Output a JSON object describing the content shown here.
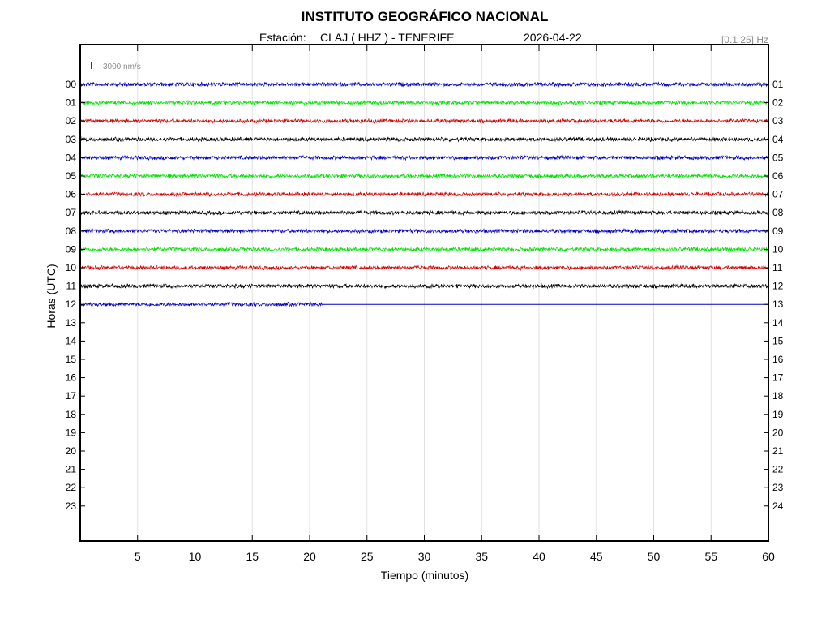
{
  "header": {
    "title": "INSTITUTO GEOGRÁFICO NACIONAL",
    "station_prefix": "Estación:",
    "station": "CLAJ ( HHZ ) - TENERIFE",
    "date": "2026-04-22",
    "filter": "[0.1 25] Hz"
  },
  "chart_data": {
    "type": "line",
    "title": "INSTITUTO GEOGRÁFICO NACIONAL",
    "xlabel": "Tiempo (minutos)",
    "ylabel": "Horas (UTC)",
    "xlim": [
      0,
      60
    ],
    "x_ticks": [
      "5",
      "10",
      "15",
      "20",
      "25",
      "30",
      "35",
      "40",
      "45",
      "50",
      "55",
      "60"
    ],
    "y_ticks_left": [
      "00",
      "01",
      "02",
      "03",
      "04",
      "05",
      "06",
      "07",
      "08",
      "09",
      "10",
      "11",
      "12",
      "13",
      "14",
      "15",
      "16",
      "17",
      "18",
      "19",
      "20",
      "21",
      "22",
      "23"
    ],
    "y_ticks_right": [
      "01",
      "02",
      "03",
      "04",
      "05",
      "06",
      "07",
      "08",
      "09",
      "10",
      "11",
      "12",
      "13",
      "14",
      "15",
      "16",
      "17",
      "18",
      "19",
      "20",
      "21",
      "22",
      "23",
      "24"
    ],
    "grid": true,
    "scale_bar": {
      "label": "3000 nm/s",
      "color": "#d40000"
    },
    "trace_colors": [
      "#0000c8",
      "#00e000",
      "#d40000",
      "#000000"
    ],
    "traces": [
      {
        "hour": "00",
        "color": "#0000c8",
        "end_minute": 60
      },
      {
        "hour": "01",
        "color": "#00e000",
        "end_minute": 60
      },
      {
        "hour": "02",
        "color": "#d40000",
        "end_minute": 60
      },
      {
        "hour": "03",
        "color": "#000000",
        "end_minute": 60
      },
      {
        "hour": "04",
        "color": "#0000c8",
        "end_minute": 60
      },
      {
        "hour": "05",
        "color": "#00e000",
        "end_minute": 60
      },
      {
        "hour": "06",
        "color": "#d40000",
        "end_minute": 60
      },
      {
        "hour": "07",
        "color": "#000000",
        "end_minute": 60
      },
      {
        "hour": "08",
        "color": "#0000c8",
        "end_minute": 60
      },
      {
        "hour": "09",
        "color": "#00e000",
        "end_minute": 60
      },
      {
        "hour": "10",
        "color": "#d40000",
        "end_minute": 60
      },
      {
        "hour": "11",
        "color": "#000000",
        "end_minute": 60
      },
      {
        "hour": "12",
        "color": "#0000c8",
        "end_minute": 21.1,
        "flat_until": 60
      }
    ]
  }
}
